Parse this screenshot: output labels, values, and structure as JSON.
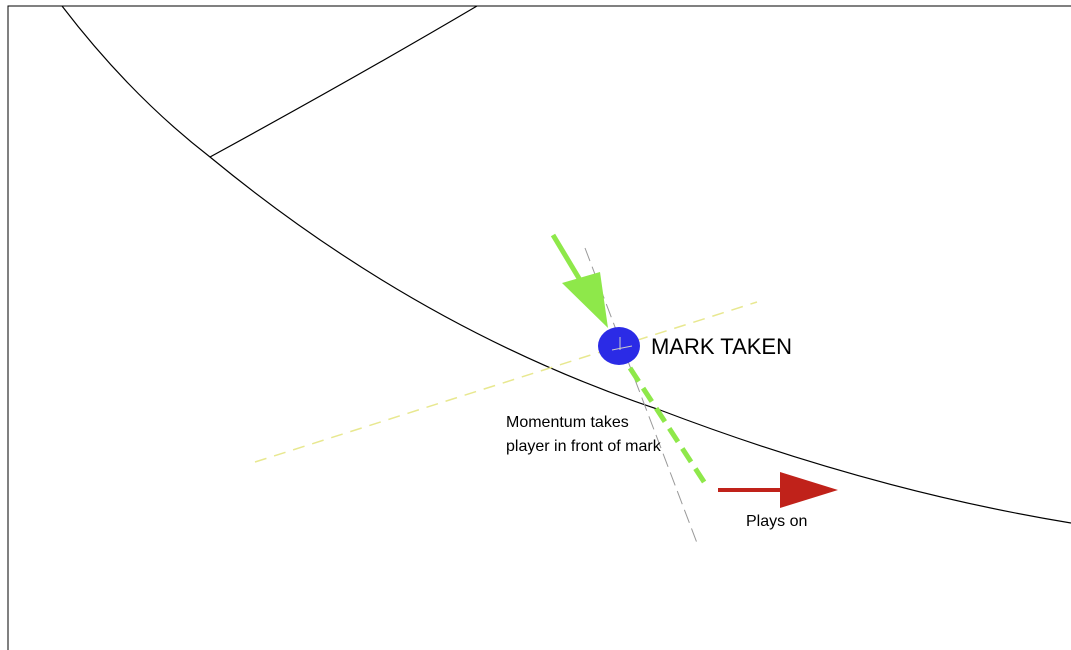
{
  "labels": {
    "mark": "MARK TAKEN",
    "momentum_line1": "Momentum takes",
    "momentum_line2": "player in front of mark",
    "plays_on": "Plays on"
  }
}
